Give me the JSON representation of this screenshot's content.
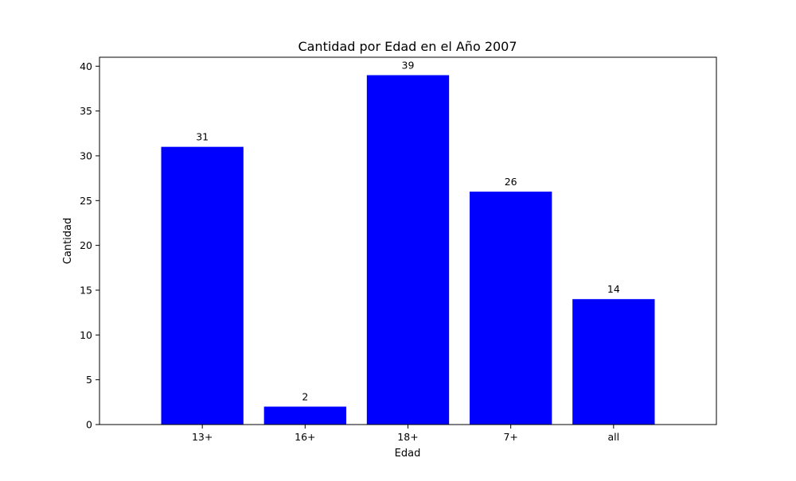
{
  "chart_data": {
    "type": "bar",
    "title": "Cantidad por Edad en el Año 2007",
    "xlabel": "Edad",
    "ylabel": "Cantidad",
    "categories": [
      "13+",
      "16+",
      "18+",
      "7+",
      "all"
    ],
    "values": [
      31,
      2,
      39,
      26,
      14
    ],
    "ylim": [
      0,
      41
    ],
    "yticks": [
      0,
      5,
      10,
      15,
      20,
      25,
      30,
      35,
      40
    ],
    "bar_color": "#0000ff",
    "grid": false,
    "legend": "none"
  }
}
